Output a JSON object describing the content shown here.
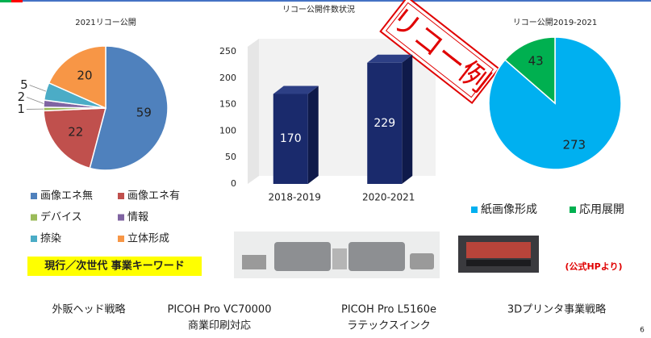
{
  "chart_data": [
    {
      "type": "pie",
      "title": "2021リコー公開",
      "categories": [
        "画像エネ無",
        "画像エネ有",
        "デバイス",
        "情報",
        "捺染",
        "立体形成"
      ],
      "values": [
        59,
        22,
        1,
        2,
        5,
        20
      ],
      "colors": [
        "#4f81bd",
        "#c0504d",
        "#9bbb59",
        "#8064a2",
        "#4bacc6",
        "#f79646"
      ]
    },
    {
      "type": "bar",
      "title": "リコー公開件数状況",
      "categories": [
        "2018-2019",
        "2020-2021"
      ],
      "values": [
        170,
        229
      ],
      "color": "#1a2a6c",
      "ylim": [
        0,
        250
      ],
      "yticks": [
        0,
        50,
        100,
        150,
        200,
        250
      ],
      "grid": false
    },
    {
      "type": "pie",
      "title": "リコー公開2019-2021",
      "categories": [
        "紙画像形成",
        "応用展開"
      ],
      "values": [
        273,
        43
      ],
      "colors": [
        "#00b0f0",
        "#00b050"
      ]
    }
  ],
  "stamp": "リコー例",
  "keyword_box": "現行／次世代 事業キーワード",
  "source_note": "(公式HPより)",
  "captions": [
    [
      "外販ヘッド戦略"
    ],
    [
      "PICOH Pro VC70000",
      "商業印刷対応"
    ],
    [
      "PICOH Pro L5160e",
      "ラテックスインク"
    ],
    [
      "3Dプリンタ事業戦略"
    ]
  ],
  "page_number": 6
}
